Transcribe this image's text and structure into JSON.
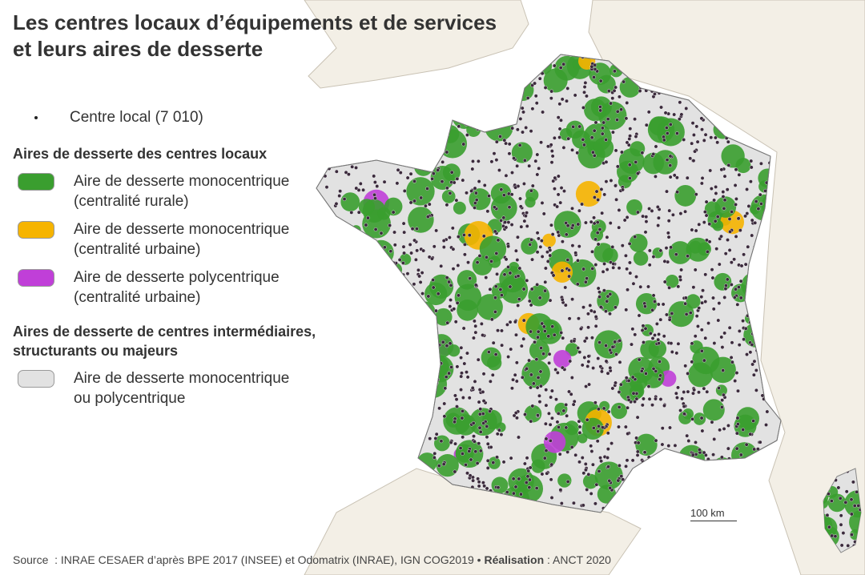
{
  "title": [
    "Les centres locaux d’équipements et de services",
    "et leurs aires de desserte"
  ],
  "legend": {
    "point": "Centre local (7 010)",
    "sections": [
      {
        "heading": [
          "Aires de desserte des centres locaux"
        ],
        "items": [
          {
            "label": [
              "Aire de desserte monocentrique",
              "(centralité rurale)"
            ],
            "color": "#3a9e2f"
          },
          {
            "label": [
              "Aire de desserte monocentrique",
              "(centralité urbaine)"
            ],
            "color": "#f6b400"
          },
          {
            "label": [
              "Aire de desserte polycentrique",
              "(centralité urbaine)"
            ],
            "color": "#c03fd8"
          }
        ]
      },
      {
        "heading": [
          "Aires de desserte de centres intermédiaires,",
          "structurants ou majeurs"
        ],
        "items": [
          {
            "label": [
              "Aire de desserte monocentrique",
              "ou polycentrique"
            ],
            "color": "#e2e2e2"
          }
        ]
      }
    ]
  },
  "scale_bar": "100 km",
  "source": {
    "label": "Source",
    "text": ": INRAE CESAER d’après BPE 2017 (INSEE) et Odomatrix (INRAE), IGN COG2019",
    "separator": "•",
    "credit_label": "Réalisation",
    "credit": ": ANCT 2020"
  }
}
